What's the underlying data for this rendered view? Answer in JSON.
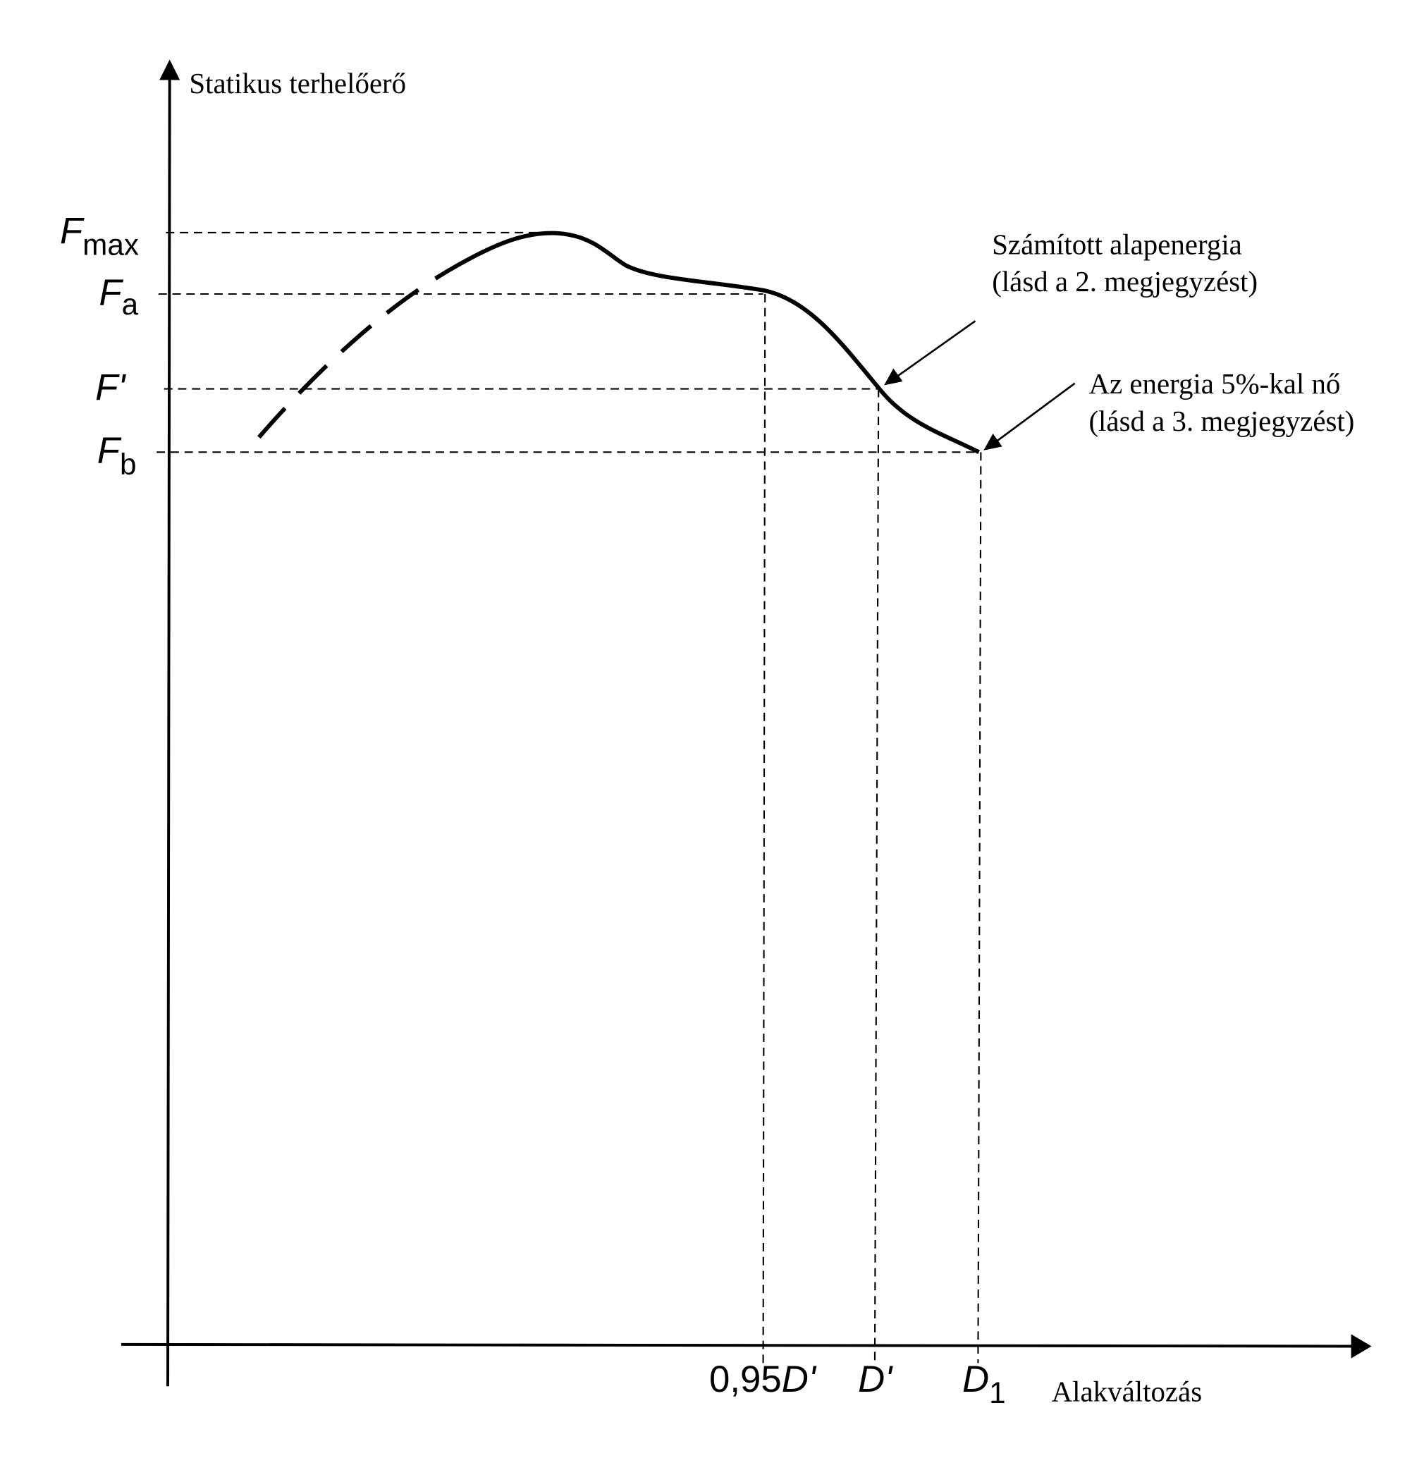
{
  "axes": {
    "y_title": "Statikus terhelőerő",
    "x_title": "Alakváltozás"
  },
  "y_labels": [
    {
      "symbol": "F",
      "subscript": "max"
    },
    {
      "symbol": "F",
      "subscript": "a"
    },
    {
      "symbol": "F'"
    },
    {
      "symbol": "F",
      "subscript": "b"
    }
  ],
  "x_labels": [
    {
      "prefix": "0,95",
      "symbol": "D'"
    },
    {
      "symbol": "D'"
    },
    {
      "symbol": "D",
      "subscript": "1"
    }
  ],
  "annotations": [
    {
      "lines": [
        "Számított alapenergia",
        "(lásd a 2. megjegyzést)"
      ]
    },
    {
      "lines": [
        "Az energia 5%-kal nő",
        "(lásd a 3. megjegyzést)"
      ]
    }
  ]
}
